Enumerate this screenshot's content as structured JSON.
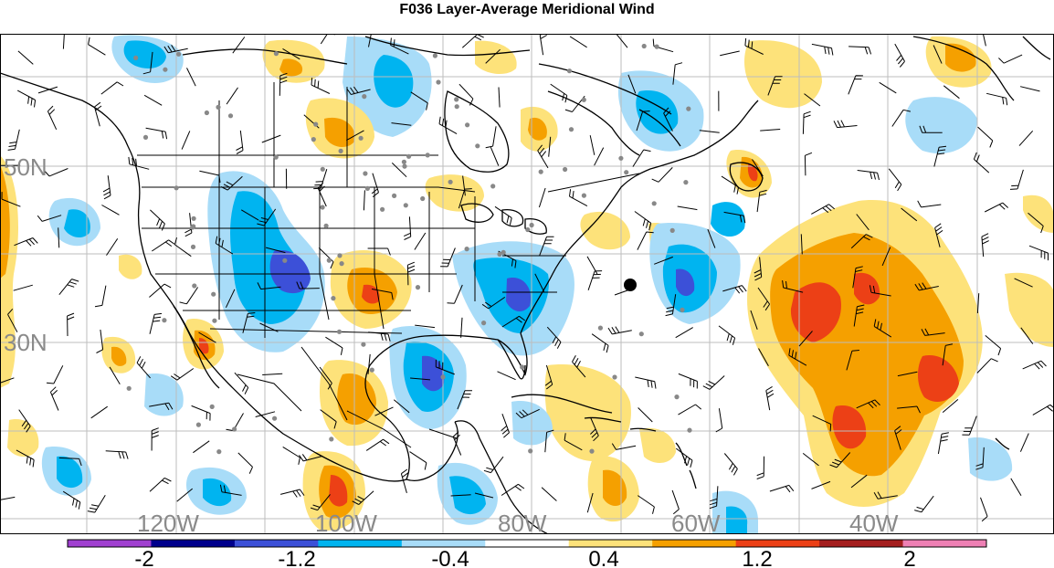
{
  "title": "F036 Layer-Average Meridional Wind",
  "map": {
    "lat_labels": [
      "50N",
      "30N"
    ],
    "lon_labels": [
      "120W",
      "100W",
      "80W",
      "60W",
      "40W"
    ],
    "label_color": "#8a8a8a",
    "grid_color": "#bdbdbd",
    "coast_color": "#000000",
    "marker_color": "#000000",
    "station_color": "#888888"
  },
  "colorbar": {
    "colors": [
      "#a040d0",
      "#00008c",
      "#3c50d8",
      "#00b4f0",
      "#a8dcf8",
      "#ffffff",
      "#fde27a",
      "#f5a000",
      "#ec4016",
      "#a41e1e",
      "#ee80b4"
    ],
    "labels": [
      "-2",
      "-1.2",
      "-0.4",
      "0.4",
      "1.2",
      "2"
    ]
  }
}
